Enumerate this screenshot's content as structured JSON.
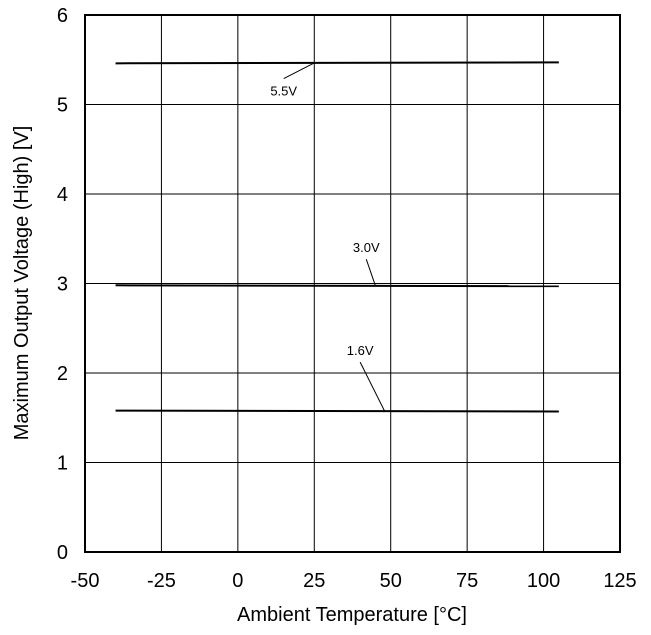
{
  "chart_data": {
    "type": "line",
    "title": "",
    "xlabel": "Ambient Temperature [°C]",
    "ylabel": "Maximum Output Voltage (High) [V]",
    "xlim": [
      -50,
      125
    ],
    "ylim": [
      0,
      6
    ],
    "xticks": [
      -50,
      -25,
      0,
      25,
      50,
      75,
      100,
      125
    ],
    "yticks": [
      0,
      1,
      2,
      3,
      4,
      5,
      6
    ],
    "x_tick_labels": [
      "-50",
      "-25",
      "0",
      "25",
      "50",
      "75",
      "100",
      "125"
    ],
    "y_tick_labels": [
      "0",
      "1",
      "2",
      "3",
      "4",
      "5",
      "6"
    ],
    "grid": true,
    "legend": "none",
    "series": [
      {
        "name": "5.5V",
        "x": [
          -40,
          105
        ],
        "y": [
          5.46,
          5.47
        ],
        "color": "#000000"
      },
      {
        "name": "3.0V",
        "x": [
          -40,
          105
        ],
        "y": [
          2.98,
          2.97
        ],
        "color": "#000000"
      },
      {
        "name": "1.6V",
        "x": [
          -40,
          105
        ],
        "y": [
          1.58,
          1.57
        ],
        "color": "#000000"
      }
    ],
    "annotations": [
      {
        "text": "5.5V",
        "series": 0,
        "point_x": 25,
        "label_x": 15,
        "label_y": 5.1
      },
      {
        "text": "3.0V",
        "series": 1,
        "point_x": 45,
        "label_x": 42,
        "label_y": 3.35
      },
      {
        "text": "1.6V",
        "series": 2,
        "point_x": 48,
        "label_x": 40,
        "label_y": 2.2
      }
    ]
  }
}
